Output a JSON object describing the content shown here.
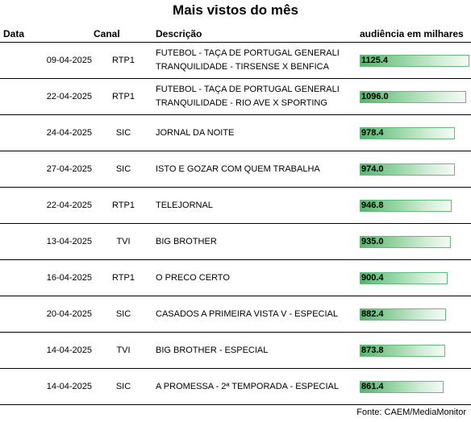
{
  "title": "Mais vistos do mês",
  "columns": {
    "date": "Data",
    "channel": "Canal",
    "description": "Descrição",
    "audience": "audiência em milhares"
  },
  "max_audience": 1125.4,
  "rows": [
    {
      "date": "09-04-2025",
      "channel": "RTP1",
      "description": [
        "FUTEBOL - TAÇA DE PORTUGAL GENERALI",
        "TRANQUILIDADE - TIRSENSE X BENFICA"
      ],
      "audience": "1125.4",
      "value": 1125.4
    },
    {
      "date": "22-04-2025",
      "channel": "RTP1",
      "description": [
        "FUTEBOL - TAÇA DE PORTUGAL GENERALI",
        "TRANQUILIDADE - RIO AVE X SPORTING"
      ],
      "audience": "1096.0",
      "value": 1096.0
    },
    {
      "date": "24-04-2025",
      "channel": "SIC",
      "description": [
        "JORNAL DA NOITE"
      ],
      "audience": "978.4",
      "value": 978.4
    },
    {
      "date": "27-04-2025",
      "channel": "SIC",
      "description": [
        "ISTO E GOZAR COM QUEM TRABALHA"
      ],
      "audience": "974.0",
      "value": 974.0
    },
    {
      "date": "22-04-2025",
      "channel": "RTP1",
      "description": [
        "TELEJORNAL"
      ],
      "audience": "946.8",
      "value": 946.8
    },
    {
      "date": "13-04-2025",
      "channel": "TVI",
      "description": [
        "BIG BROTHER"
      ],
      "audience": "935.0",
      "value": 935.0
    },
    {
      "date": "16-04-2025",
      "channel": "RTP1",
      "description": [
        "O PRECO CERTO"
      ],
      "audience": "900.4",
      "value": 900.4
    },
    {
      "date": "20-04-2025",
      "channel": "SIC",
      "description": [
        "CASADOS A PRIMEIRA VISTA V - ESPECIAL"
      ],
      "audience": "882.4",
      "value": 882.4
    },
    {
      "date": "14-04-2025",
      "channel": "TVI",
      "description": [
        "BIG BROTHER - ESPECIAL"
      ],
      "audience": "873.8",
      "value": 873.8
    },
    {
      "date": "14-04-2025",
      "channel": "SIC",
      "description": [
        "A PROMESSA - 2ª TEMPORADA - ESPECIAL"
      ],
      "audience": "861.4",
      "value": 861.4
    }
  ],
  "source": "Fonte: CAEM/MediaMonitor"
}
